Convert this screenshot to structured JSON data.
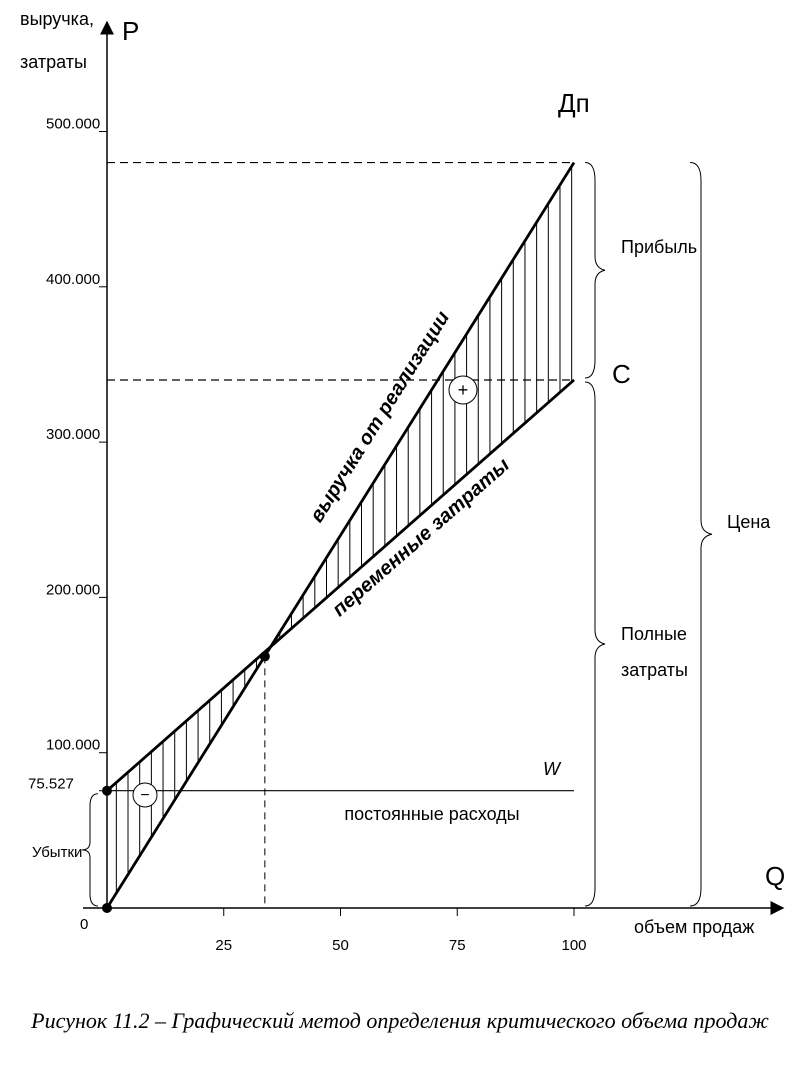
{
  "chart_data": {
    "type": "line",
    "title": "",
    "y_axis": {
      "symbol": "P",
      "label_lines": [
        "выручка,",
        "затраты"
      ],
      "ticks": [
        {
          "value": 75527,
          "label": "75.527"
        },
        {
          "value": 100000,
          "label": "100.000"
        },
        {
          "value": 200000,
          "label": "200.000"
        },
        {
          "value": 300000,
          "label": "300.000"
        },
        {
          "value": 400000,
          "label": "400.000"
        },
        {
          "value": 500000,
          "label": "500.000"
        }
      ],
      "ylim": [
        0,
        510000
      ]
    },
    "x_axis": {
      "symbol": "Q",
      "label": "объем продаж",
      "origin_label": "0",
      "ticks": [
        {
          "value": 25,
          "label": "25"
        },
        {
          "value": 50,
          "label": "50"
        },
        {
          "value": 75,
          "label": "75"
        },
        {
          "value": 100,
          "label": "100"
        }
      ],
      "xlim": [
        0,
        110
      ]
    },
    "series": [
      {
        "name": "выручка от реализации",
        "x": [
          0,
          100
        ],
        "y": [
          0,
          480000
        ]
      },
      {
        "name": "переменные затраты",
        "x": [
          0,
          100
        ],
        "y": [
          75527,
          340000
        ]
      },
      {
        "name": "постоянные расходы",
        "x": [
          0,
          100
        ],
        "y": [
          75527,
          75527
        ]
      }
    ],
    "break_even": {
      "x": 33.8,
      "y": 162000
    },
    "points": {
      "revenue_end": {
        "label": "Дп",
        "y": 480000
      },
      "costs_end": {
        "label": "C",
        "y": 340000
      },
      "fixed_line": {
        "label": "W"
      }
    },
    "braces": {
      "profit": "Прибыль",
      "full_costs": [
        "Полные",
        "затраты"
      ],
      "price": "Цена",
      "losses": "Убытки"
    },
    "zone_signs": {
      "loss": "−",
      "profit": "+"
    }
  },
  "caption": "Рисунок 11.2 – Графический метод определения критического объема продаж"
}
